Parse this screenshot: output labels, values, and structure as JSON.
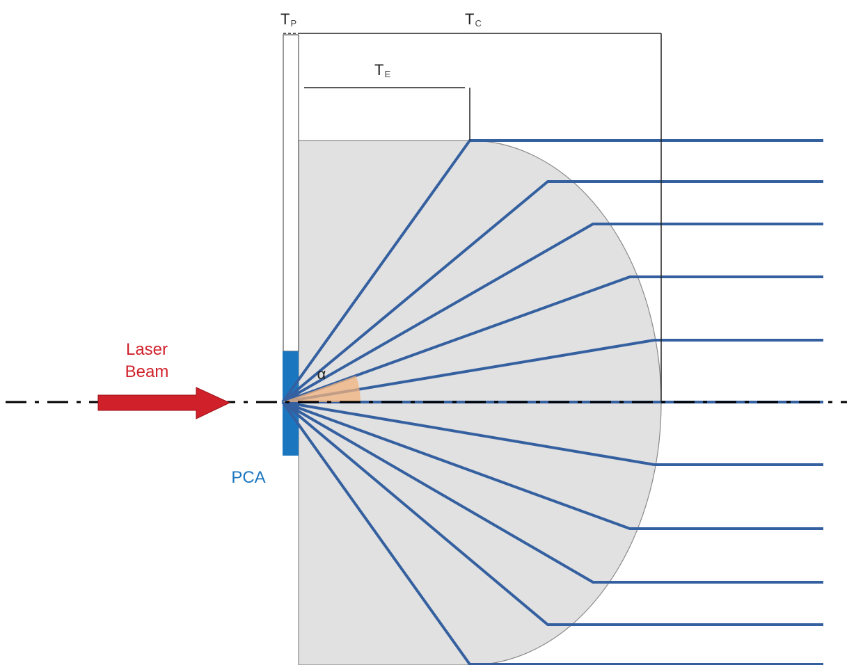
{
  "labels": {
    "tp_main": "T",
    "tp_sub": "P",
    "tc_main": "T",
    "tc_sub": "C",
    "te_main": "T",
    "te_sub": "E",
    "laser_line1": "Laser",
    "laser_line2": "Beam",
    "pca": "PCA",
    "alpha": "α"
  },
  "colors": {
    "ray": "#3560a0",
    "lens_fill": "#e1e1e1",
    "lens_stroke": "#8a8a8a",
    "laser": "#d0202a",
    "pca": "#1b76c0",
    "angle_sector": "#f2b27d",
    "axis": "#000000",
    "dimension_line": "#222222"
  },
  "icons": {
    "laser_arrow": "right-arrow-icon",
    "optical_axis": "dash-dot-line"
  }
}
